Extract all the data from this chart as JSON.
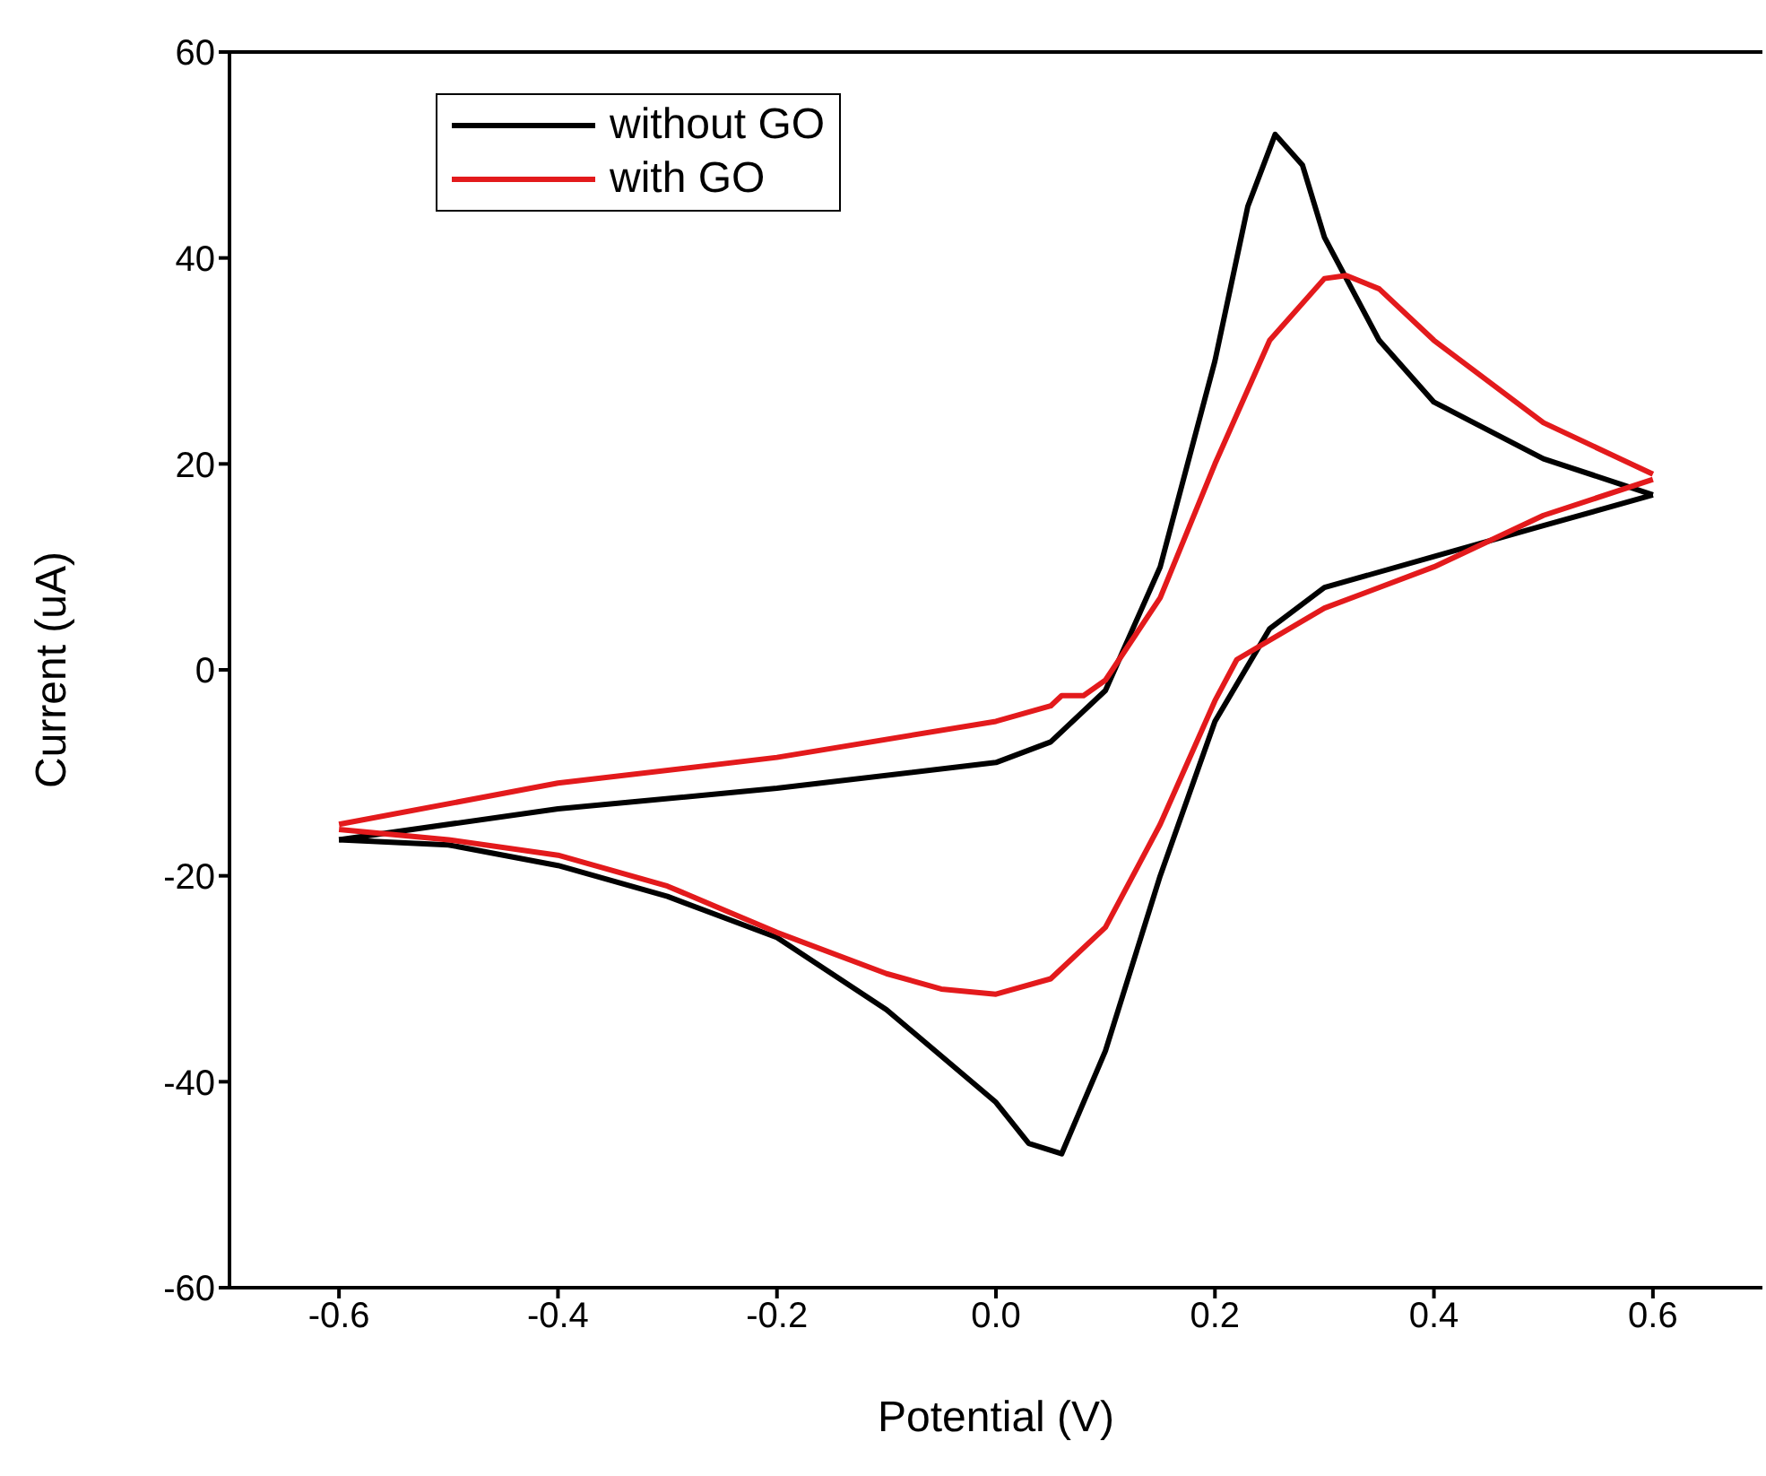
{
  "chart_data": {
    "type": "line",
    "xlabel": "Potential (V)",
    "ylabel": "Current (uA)",
    "xlim": [
      -0.7,
      0.7
    ],
    "xticks": [
      -0.6,
      -0.4,
      -0.2,
      {
        "value": 0,
        "label": "0.0"
      },
      0.2,
      0.4,
      0.6
    ],
    "ylim": [
      -60,
      60
    ],
    "yticks": [
      -60,
      -40,
      -20,
      0,
      20,
      40,
      60
    ],
    "grid": false,
    "legend": "top left",
    "marker": "none",
    "line_style": "solid",
    "series": [
      {
        "name": "without GO",
        "color": "#000000",
        "x": [
          -0.6,
          -0.4,
          -0.2,
          0,
          0.05,
          0.1,
          0.15,
          0.2,
          0.23,
          0.255,
          0.28,
          0.3,
          0.35,
          0.4,
          0.5,
          0.6
        ],
        "values": [
          -16.5,
          -13.5,
          -11.5,
          -9,
          -7,
          -2,
          10,
          30,
          45,
          52,
          49,
          42,
          32,
          26,
          20.5,
          17
        ]
      },
      {
        "color": "#000000",
        "x": [
          0.6,
          0.5,
          0.4,
          0.3,
          0.25,
          0.2,
          0.15,
          0.1,
          0.06,
          0.03,
          0,
          -0.1,
          -0.2,
          -0.3,
          -0.4,
          -0.5,
          -0.6
        ],
        "values": [
          17,
          14,
          11,
          8,
          4,
          -5,
          -20,
          -37,
          -47,
          -46,
          -42,
          -33,
          -26,
          -22,
          -19,
          -17,
          -16.5
        ]
      },
      {
        "name": "with GO",
        "color": "#e31a1c",
        "x": [
          -0.6,
          -0.4,
          -0.2,
          0,
          0.05,
          0.06,
          0.08,
          0.1,
          0.15,
          0.2,
          0.25,
          0.3,
          0.32,
          0.35,
          0.4,
          0.5,
          0.6
        ],
        "values": [
          -15,
          -11,
          -8.5,
          -5,
          -3.5,
          -2.5,
          -2.5,
          -1,
          7,
          20,
          32,
          38,
          38.3,
          37,
          32,
          24,
          19
        ]
      },
      {
        "color": "#e31a1c",
        "x": [
          0.6,
          0.5,
          0.4,
          0.3,
          0.22,
          0.2,
          0.15,
          0.1,
          0.05,
          0,
          -0.05,
          -0.1,
          -0.2,
          -0.3,
          -0.4,
          -0.5,
          -0.6
        ],
        "values": [
          18.5,
          15,
          10,
          6,
          1,
          -3,
          -15,
          -25,
          -30,
          -31.5,
          -31,
          -29.5,
          -25.5,
          -21,
          -18,
          -16.5,
          -15.5
        ]
      }
    ]
  }
}
